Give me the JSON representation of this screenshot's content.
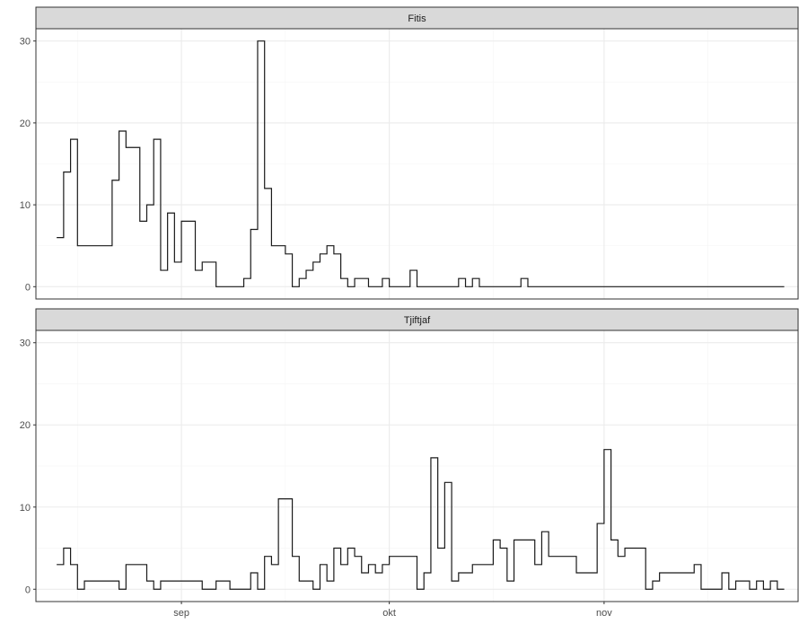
{
  "chart_data": {
    "type": "line",
    "subtype": "step",
    "facets": [
      {
        "name": "Fitis",
        "ylim": [
          -1.5,
          31.5
        ],
        "yticks": [
          0,
          10,
          20,
          30
        ],
        "x": [
          "2019-08-14",
          "2019-08-15",
          "2019-08-16",
          "2019-08-17",
          "2019-08-18",
          "2019-08-19",
          "2019-08-20",
          "2019-08-21",
          "2019-08-22",
          "2019-08-23",
          "2019-08-24",
          "2019-08-25",
          "2019-08-26",
          "2019-08-27",
          "2019-08-28",
          "2019-08-29",
          "2019-08-30",
          "2019-08-31",
          "2019-09-01",
          "2019-09-02",
          "2019-09-03",
          "2019-09-04",
          "2019-09-05",
          "2019-09-06",
          "2019-09-07",
          "2019-09-08",
          "2019-09-09",
          "2019-09-10",
          "2019-09-11",
          "2019-09-12",
          "2019-09-13",
          "2019-09-14",
          "2019-09-15",
          "2019-09-16",
          "2019-09-17",
          "2019-09-18",
          "2019-09-19",
          "2019-09-20",
          "2019-09-21",
          "2019-09-22",
          "2019-09-23",
          "2019-09-24",
          "2019-09-25",
          "2019-09-26",
          "2019-09-27",
          "2019-09-28",
          "2019-09-29",
          "2019-09-30",
          "2019-10-01",
          "2019-10-02",
          "2019-10-03",
          "2019-10-04",
          "2019-10-05",
          "2019-10-06",
          "2019-10-07",
          "2019-10-08",
          "2019-10-09",
          "2019-10-10",
          "2019-10-11",
          "2019-10-12",
          "2019-10-13",
          "2019-10-14",
          "2019-10-15",
          "2019-10-16",
          "2019-10-17",
          "2019-10-18",
          "2019-10-19",
          "2019-10-20",
          "2019-10-21",
          "2019-10-22",
          "2019-10-23",
          "2019-10-24",
          "2019-10-25",
          "2019-10-26",
          "2019-10-27",
          "2019-10-28",
          "2019-10-29",
          "2019-10-30",
          "2019-10-31",
          "2019-11-01",
          "2019-11-02",
          "2019-11-03",
          "2019-11-04",
          "2019-11-05",
          "2019-11-06",
          "2019-11-07",
          "2019-11-08",
          "2019-11-09",
          "2019-11-10",
          "2019-11-11",
          "2019-11-12",
          "2019-11-13",
          "2019-11-14",
          "2019-11-15",
          "2019-11-16",
          "2019-11-17",
          "2019-11-18",
          "2019-11-19",
          "2019-11-20",
          "2019-11-21",
          "2019-11-22",
          "2019-11-23",
          "2019-11-24",
          "2019-11-25",
          "2019-11-26",
          "2019-11-27"
        ],
        "values": [
          6,
          14,
          18,
          5,
          5,
          5,
          5,
          5,
          13,
          19,
          17,
          17,
          8,
          10,
          18,
          2,
          9,
          3,
          8,
          8,
          2,
          3,
          3,
          0,
          0,
          0,
          0,
          1,
          7,
          30,
          12,
          5,
          5,
          4,
          0,
          1,
          2,
          3,
          4,
          5,
          4,
          1,
          0,
          1,
          1,
          0,
          0,
          1,
          0,
          0,
          0,
          2,
          0,
          0,
          0,
          0,
          0,
          0,
          1,
          0,
          1,
          0,
          0,
          0,
          0,
          0,
          0,
          1,
          0,
          0,
          0,
          0,
          0,
          0,
          0,
          0,
          0,
          0,
          0,
          0,
          0,
          0,
          0,
          0,
          0,
          0,
          0,
          0,
          0,
          0,
          0,
          0,
          0,
          0,
          0,
          0,
          0,
          0,
          0,
          0,
          0,
          0,
          0,
          0,
          0,
          0
        ]
      },
      {
        "name": "Tjiftjaf",
        "ylim": [
          -1.5,
          31.5
        ],
        "yticks": [
          0,
          10,
          20,
          30
        ],
        "x": [
          "2019-08-14",
          "2019-08-15",
          "2019-08-16",
          "2019-08-17",
          "2019-08-18",
          "2019-08-19",
          "2019-08-20",
          "2019-08-21",
          "2019-08-22",
          "2019-08-23",
          "2019-08-24",
          "2019-08-25",
          "2019-08-26",
          "2019-08-27",
          "2019-08-28",
          "2019-08-29",
          "2019-08-30",
          "2019-08-31",
          "2019-09-01",
          "2019-09-02",
          "2019-09-03",
          "2019-09-04",
          "2019-09-05",
          "2019-09-06",
          "2019-09-07",
          "2019-09-08",
          "2019-09-09",
          "2019-09-10",
          "2019-09-11",
          "2019-09-12",
          "2019-09-13",
          "2019-09-14",
          "2019-09-15",
          "2019-09-16",
          "2019-09-17",
          "2019-09-18",
          "2019-09-19",
          "2019-09-20",
          "2019-09-21",
          "2019-09-22",
          "2019-09-23",
          "2019-09-24",
          "2019-09-25",
          "2019-09-26",
          "2019-09-27",
          "2019-09-28",
          "2019-09-29",
          "2019-09-30",
          "2019-10-01",
          "2019-10-02",
          "2019-10-03",
          "2019-10-04",
          "2019-10-05",
          "2019-10-06",
          "2019-10-07",
          "2019-10-08",
          "2019-10-09",
          "2019-10-10",
          "2019-10-11",
          "2019-10-12",
          "2019-10-13",
          "2019-10-14",
          "2019-10-15",
          "2019-10-16",
          "2019-10-17",
          "2019-10-18",
          "2019-10-19",
          "2019-10-20",
          "2019-10-21",
          "2019-10-22",
          "2019-10-23",
          "2019-10-24",
          "2019-10-25",
          "2019-10-26",
          "2019-10-27",
          "2019-10-28",
          "2019-10-29",
          "2019-10-30",
          "2019-10-31",
          "2019-11-01",
          "2019-11-02",
          "2019-11-03",
          "2019-11-04",
          "2019-11-05",
          "2019-11-06",
          "2019-11-07",
          "2019-11-08",
          "2019-11-09",
          "2019-11-10",
          "2019-11-11",
          "2019-11-12",
          "2019-11-13",
          "2019-11-14",
          "2019-11-15",
          "2019-11-16",
          "2019-11-17",
          "2019-11-18",
          "2019-11-19",
          "2019-11-20",
          "2019-11-21",
          "2019-11-22",
          "2019-11-23",
          "2019-11-24",
          "2019-11-25",
          "2019-11-26",
          "2019-11-27"
        ],
        "values": [
          3,
          5,
          3,
          0,
          1,
          1,
          1,
          1,
          1,
          0,
          3,
          3,
          3,
          1,
          0,
          1,
          1,
          1,
          1,
          1,
          1,
          0,
          0,
          1,
          1,
          0,
          0,
          0,
          2,
          0,
          4,
          3,
          11,
          11,
          4,
          1,
          1,
          0,
          3,
          1,
          5,
          3,
          5,
          4,
          2,
          3,
          2,
          3,
          4,
          4,
          4,
          4,
          0,
          2,
          16,
          5,
          13,
          1,
          2,
          2,
          3,
          3,
          3,
          6,
          5,
          1,
          6,
          6,
          6,
          3,
          7,
          4,
          4,
          4,
          4,
          2,
          2,
          2,
          8,
          17,
          6,
          4,
          5,
          5,
          5,
          0,
          1,
          2,
          2,
          2,
          2,
          2,
          3,
          0,
          0,
          0,
          2,
          0,
          1,
          1,
          0,
          1,
          0,
          1,
          0,
          0
        ]
      }
    ],
    "xlim": [
      "2019-08-11",
      "2019-11-29"
    ],
    "x_ticks": [
      {
        "date": "2019-09-01",
        "label": "sep"
      },
      {
        "date": "2019-10-01",
        "label": "okt"
      },
      {
        "date": "2019-11-01",
        "label": "nov"
      }
    ],
    "x_minor_ticks": [
      "2019-08-17",
      "2019-09-16",
      "2019-10-16",
      "2019-11-16"
    ],
    "grid": true,
    "xlabel": "",
    "ylabel": "",
    "title": "",
    "colors": {
      "line": "#1a1a1a",
      "grid_major": "#ebebeb",
      "grid_minor": "#f5f5f5",
      "strip_fill": "#d9d9d9",
      "panel_border": "#333333",
      "tick_text": "#4d4d4d"
    }
  }
}
